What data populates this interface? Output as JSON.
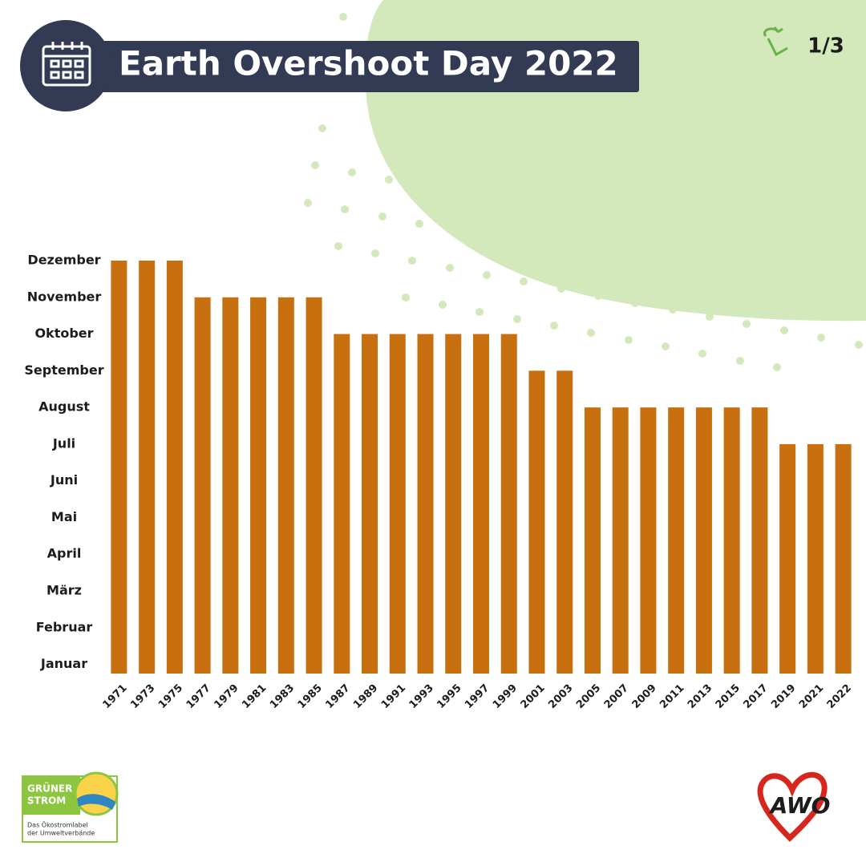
{
  "chart_data": {
    "type": "bar",
    "title": "Earth Overshoot Day 2022",
    "categories": [
      "1971",
      "1973",
      "1975",
      "1977",
      "1979",
      "1981",
      "1983",
      "1985",
      "1987",
      "1989",
      "1991",
      "1993",
      "1995",
      "1997",
      "1999",
      "2001",
      "2003",
      "2005",
      "2007",
      "2009",
      "2011",
      "2013",
      "2015",
      "2017",
      "2019",
      "2021",
      "2022"
    ],
    "values": [
      12,
      12,
      12,
      11,
      11,
      11,
      11,
      11,
      10,
      10,
      10,
      10,
      10,
      10,
      10,
      9,
      9,
      8,
      8,
      8,
      8,
      8,
      8,
      8,
      7,
      7,
      7
    ],
    "color": "#c8700f",
    "ylim": [
      0.75,
      12
    ],
    "yticks": [
      {
        "value": 1,
        "label": "Januar"
      },
      {
        "value": 2,
        "label": "Februar"
      },
      {
        "value": 3,
        "label": "März"
      },
      {
        "value": 4,
        "label": "April"
      },
      {
        "value": 5,
        "label": "Mai"
      },
      {
        "value": 6,
        "label": "Juni"
      },
      {
        "value": 7,
        "label": "Juli"
      },
      {
        "value": 8,
        "label": "August"
      },
      {
        "value": 9,
        "label": "September"
      },
      {
        "value": 10,
        "label": "Oktober"
      },
      {
        "value": 11,
        "label": "November"
      },
      {
        "value": 12,
        "label": "Dezember"
      }
    ],
    "grid": false
  },
  "page_number": "1/3",
  "logos": {
    "label_line1": "GRÜNER",
    "label_line2": "STROM",
    "label_sub1": "Das Ökostromlabel",
    "label_sub2": "der Umweltverbände",
    "brand": "AWO"
  }
}
